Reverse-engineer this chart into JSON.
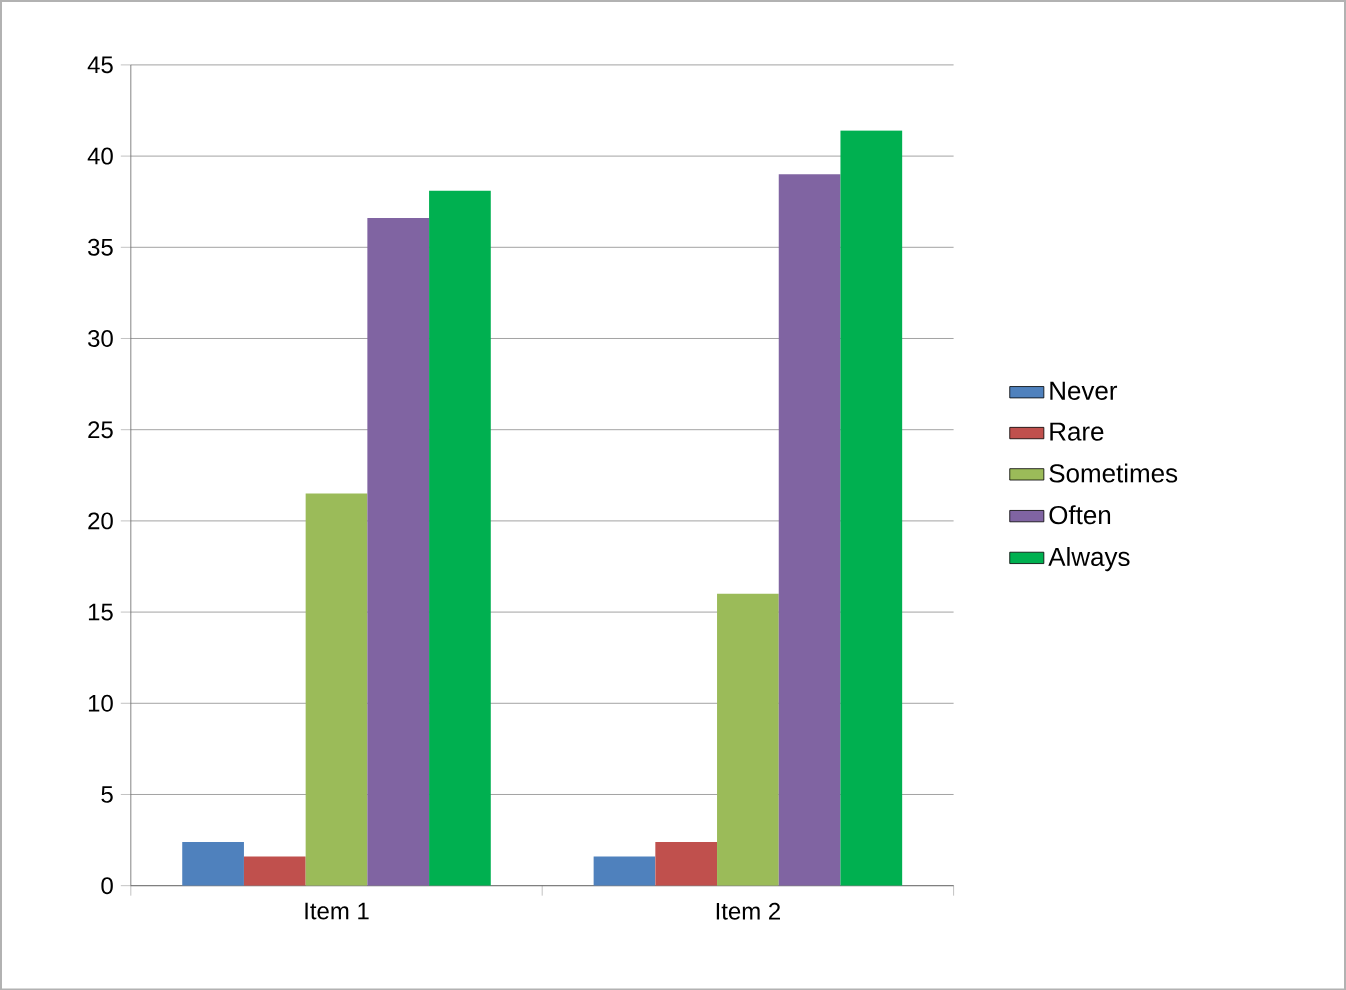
{
  "chart_data": {
    "type": "bar",
    "categories": [
      "Item 1",
      "Item 2"
    ],
    "series": [
      {
        "name": "Never",
        "color": "#4f81bd",
        "values": [
          2.4,
          1.6
        ]
      },
      {
        "name": "Rare",
        "color": "#c0504d",
        "values": [
          1.6,
          2.4
        ]
      },
      {
        "name": "Sometimes",
        "color": "#9bbb59",
        "values": [
          21.5,
          16.0
        ]
      },
      {
        "name": "Often",
        "color": "#8064a2",
        "values": [
          36.6,
          39.0
        ]
      },
      {
        "name": "Always",
        "color": "#00b050",
        "values": [
          38.1,
          41.4
        ]
      }
    ],
    "ylim": [
      0,
      45
    ],
    "yticks": [
      0,
      5,
      10,
      15,
      20,
      25,
      30,
      35,
      40,
      45
    ],
    "grid": "y",
    "legend": "right"
  }
}
